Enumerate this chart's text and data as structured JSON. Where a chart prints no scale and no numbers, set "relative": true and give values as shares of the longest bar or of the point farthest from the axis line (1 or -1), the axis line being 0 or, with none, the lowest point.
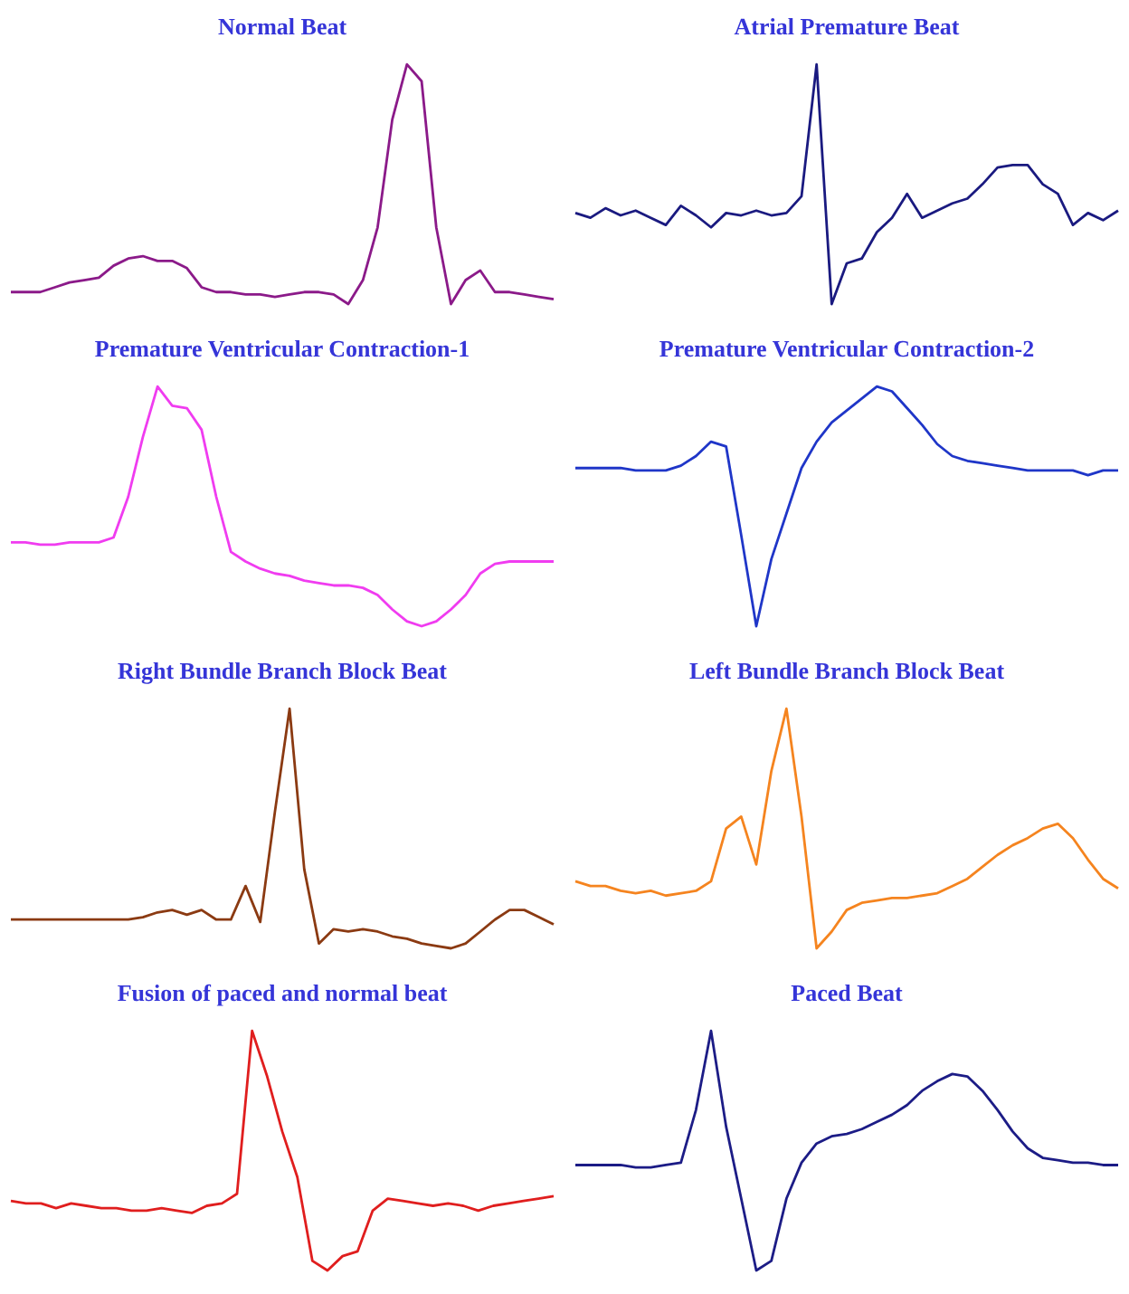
{
  "chart_data": [
    {
      "type": "line",
      "title": "Normal Beat",
      "relative": true,
      "categories": [
        null,
        null,
        null,
        null,
        null,
        null,
        null,
        null,
        null,
        null,
        null,
        null,
        null,
        null,
        null,
        null,
        null,
        null,
        null,
        null,
        null,
        null,
        null,
        null,
        null,
        null,
        null,
        null,
        null,
        null,
        null,
        null,
        null,
        null,
        null,
        null,
        null,
        null
      ],
      "series": [
        {
          "color": "#8b1a89",
          "values": [
            0.05,
            0.05,
            0.05,
            0.07,
            0.09,
            0.1,
            0.11,
            0.16,
            0.19,
            0.2,
            0.18,
            0.18,
            0.15,
            0.07,
            0.05,
            0.05,
            0.04,
            0.04,
            0.03,
            0.04,
            0.05,
            0.05,
            0.04,
            0,
            0.1,
            0.32,
            0.77,
            1,
            0.93,
            0.32,
            0,
            0.1,
            0.14,
            0.05,
            0.05,
            0.04,
            0.03,
            0.02
          ]
        }
      ]
    },
    {
      "type": "line",
      "title": "Atrial Premature Beat",
      "relative": true,
      "categories": [
        null,
        null,
        null,
        null,
        null,
        null,
        null,
        null,
        null,
        null,
        null,
        null,
        null,
        null,
        null,
        null,
        null,
        null,
        null,
        null,
        null,
        null,
        null,
        null,
        null,
        null,
        null,
        null,
        null,
        null,
        null,
        null,
        null,
        null,
        null,
        null,
        null
      ],
      "series": [
        {
          "color": "#1a1a80",
          "values": [
            0.38,
            0.36,
            0.4,
            0.37,
            0.39,
            0.36,
            0.33,
            0.41,
            0.37,
            0.32,
            0.38,
            0.37,
            0.39,
            0.37,
            0.38,
            0.45,
            1,
            0,
            0.17,
            0.19,
            0.3,
            0.36,
            0.46,
            0.36,
            0.39,
            0.42,
            0.44,
            0.5,
            0.57,
            0.58,
            0.58,
            0.5,
            0.46,
            0.33,
            0.38,
            0.35,
            0.39
          ]
        }
      ]
    },
    {
      "type": "line",
      "title": "Premature Ventricular Contraction-1",
      "relative": true,
      "categories": [
        null,
        null,
        null,
        null,
        null,
        null,
        null,
        null,
        null,
        null,
        null,
        null,
        null,
        null,
        null,
        null,
        null,
        null,
        null,
        null,
        null,
        null,
        null,
        null,
        null,
        null,
        null,
        null,
        null,
        null,
        null,
        null,
        null,
        null,
        null,
        null,
        null,
        null
      ],
      "series": [
        {
          "color": "#f03cf0",
          "values": [
            0.35,
            0.35,
            0.34,
            0.34,
            0.35,
            0.35,
            0.35,
            0.37,
            0.54,
            0.79,
            1,
            0.92,
            0.91,
            0.82,
            0.54,
            0.31,
            0.27,
            0.24,
            0.22,
            0.21,
            0.19,
            0.18,
            0.17,
            0.17,
            0.16,
            0.13,
            0.07,
            0.02,
            0,
            0.02,
            0.07,
            0.13,
            0.22,
            0.26,
            0.27,
            0.27,
            0.27,
            0.27
          ]
        }
      ]
    },
    {
      "type": "line",
      "title": "Premature Ventricular Contraction-2",
      "relative": true,
      "categories": [
        null,
        null,
        null,
        null,
        null,
        null,
        null,
        null,
        null,
        null,
        null,
        null,
        null,
        null,
        null,
        null,
        null,
        null,
        null,
        null,
        null,
        null,
        null,
        null,
        null,
        null,
        null,
        null,
        null,
        null,
        null,
        null,
        null,
        null,
        null,
        null,
        null
      ],
      "series": [
        {
          "color": "#1f36c8",
          "values": [
            0.66,
            0.66,
            0.66,
            0.66,
            0.65,
            0.65,
            0.65,
            0.67,
            0.71,
            0.77,
            0.75,
            0.38,
            0,
            0.28,
            0.47,
            0.66,
            0.77,
            0.85,
            0.9,
            0.95,
            1,
            0.98,
            0.91,
            0.84,
            0.76,
            0.71,
            0.69,
            0.68,
            0.67,
            0.66,
            0.65,
            0.65,
            0.65,
            0.65,
            0.63,
            0.65,
            0.65
          ]
        }
      ]
    },
    {
      "type": "line",
      "title": "Right Bundle Branch Block Beat",
      "relative": true,
      "categories": [
        null,
        null,
        null,
        null,
        null,
        null,
        null,
        null,
        null,
        null,
        null,
        null,
        null,
        null,
        null,
        null,
        null,
        null,
        null,
        null,
        null,
        null,
        null,
        null,
        null,
        null,
        null,
        null,
        null,
        null,
        null,
        null,
        null,
        null,
        null,
        null,
        null,
        null
      ],
      "series": [
        {
          "color": "#8b3a12",
          "values": [
            0.12,
            0.12,
            0.12,
            0.12,
            0.12,
            0.12,
            0.12,
            0.12,
            0.12,
            0.13,
            0.15,
            0.16,
            0.14,
            0.16,
            0.12,
            0.12,
            0.26,
            0.11,
            0.57,
            1,
            0.33,
            0.02,
            0.08,
            0.07,
            0.08,
            0.07,
            0.05,
            0.04,
            0.02,
            0.01,
            0,
            0.02,
            0.07,
            0.12,
            0.16,
            0.16,
            0.13,
            0.1
          ]
        }
      ]
    },
    {
      "type": "line",
      "title": "Left Bundle Branch Block Beat",
      "relative": true,
      "categories": [
        null,
        null,
        null,
        null,
        null,
        null,
        null,
        null,
        null,
        null,
        null,
        null,
        null,
        null,
        null,
        null,
        null,
        null,
        null,
        null,
        null,
        null,
        null,
        null,
        null,
        null,
        null,
        null,
        null,
        null,
        null,
        null,
        null,
        null,
        null,
        null,
        null
      ],
      "series": [
        {
          "color": "#f5841f",
          "values": [
            0.28,
            0.26,
            0.26,
            0.24,
            0.23,
            0.24,
            0.22,
            0.23,
            0.24,
            0.28,
            0.5,
            0.55,
            0.35,
            0.74,
            1,
            0.55,
            0,
            0.07,
            0.16,
            0.19,
            0.2,
            0.21,
            0.21,
            0.22,
            0.23,
            0.26,
            0.29,
            0.34,
            0.39,
            0.43,
            0.46,
            0.5,
            0.52,
            0.46,
            0.37,
            0.29,
            0.25
          ]
        }
      ]
    },
    {
      "type": "line",
      "title": "Fusion of paced and normal beat",
      "relative": true,
      "categories": [
        null,
        null,
        null,
        null,
        null,
        null,
        null,
        null,
        null,
        null,
        null,
        null,
        null,
        null,
        null,
        null,
        null,
        null,
        null,
        null,
        null,
        null,
        null,
        null,
        null,
        null,
        null,
        null,
        null,
        null,
        null,
        null,
        null,
        null,
        null,
        null,
        null
      ],
      "series": [
        {
          "color": "#e01e1e",
          "values": [
            0.29,
            0.28,
            0.28,
            0.26,
            0.28,
            0.27,
            0.26,
            0.26,
            0.25,
            0.25,
            0.26,
            0.25,
            0.24,
            0.27,
            0.28,
            0.32,
            1,
            0.81,
            0.58,
            0.39,
            0.04,
            0,
            0.06,
            0.08,
            0.25,
            0.3,
            0.29,
            0.28,
            0.27,
            0.28,
            0.27,
            0.25,
            0.27,
            0.28,
            0.29,
            0.3,
            0.31
          ]
        }
      ]
    },
    {
      "type": "line",
      "title": "Paced Beat",
      "relative": true,
      "categories": [
        null,
        null,
        null,
        null,
        null,
        null,
        null,
        null,
        null,
        null,
        null,
        null,
        null,
        null,
        null,
        null,
        null,
        null,
        null,
        null,
        null,
        null,
        null,
        null,
        null,
        null,
        null,
        null,
        null,
        null,
        null,
        null,
        null,
        null,
        null,
        null,
        null
      ],
      "series": [
        {
          "color": "#1c1c86",
          "values": [
            0.44,
            0.44,
            0.44,
            0.44,
            0.43,
            0.43,
            0.44,
            0.45,
            0.67,
            1,
            0.6,
            0.3,
            0,
            0.04,
            0.3,
            0.45,
            0.53,
            0.56,
            0.57,
            0.59,
            0.62,
            0.65,
            0.69,
            0.75,
            0.79,
            0.82,
            0.81,
            0.75,
            0.67,
            0.58,
            0.51,
            0.47,
            0.46,
            0.45,
            0.45,
            0.44,
            0.44
          ]
        }
      ]
    }
  ]
}
